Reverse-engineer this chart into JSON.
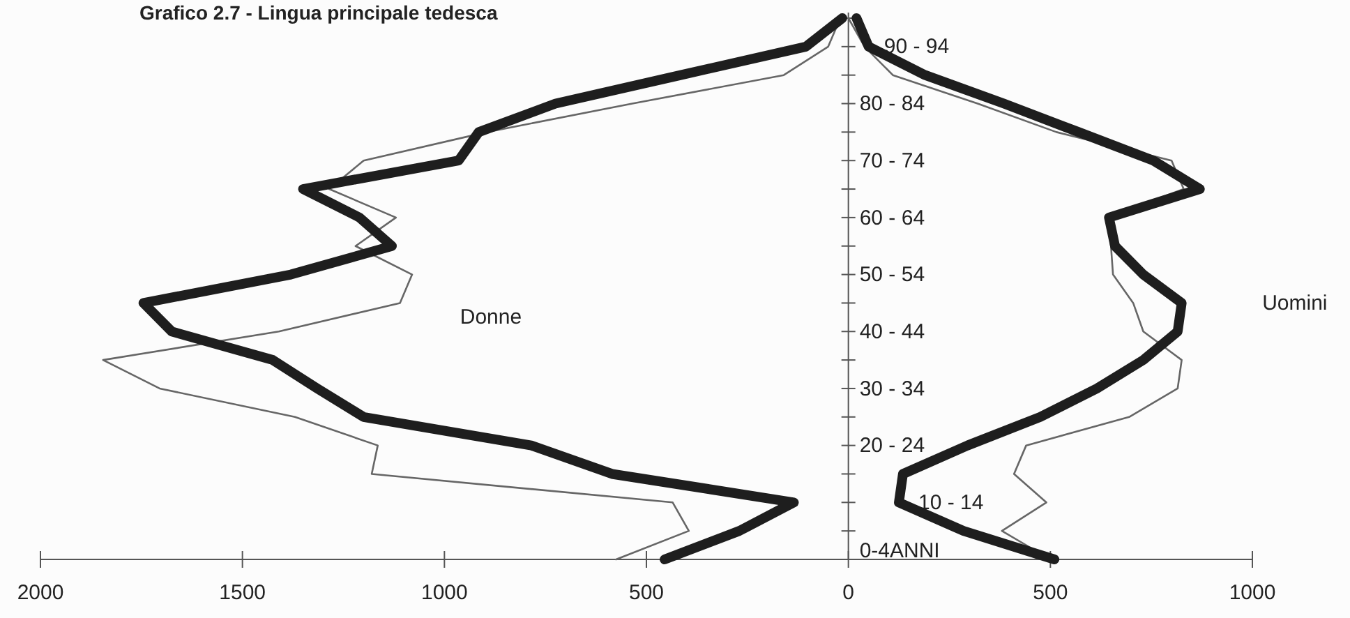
{
  "chart_data": {
    "type": "line",
    "orientation": "horizontal",
    "title": "Grafico 2.7 - Lingua principale tedesca",
    "categories": [
      null,
      "90 - 94",
      null,
      "80 - 84",
      null,
      "70 - 74",
      null,
      "60 - 64",
      null,
      "50 - 54",
      null,
      "40 - 44",
      null,
      "30 - 34",
      null,
      "20 - 24",
      null,
      "10 - 14",
      null,
      "0-4ANNI"
    ],
    "series": [
      {
        "color": "#666666",
        "values": [
          -20,
          -50,
          -160,
          -535,
          -895,
          -1200,
          -1285,
          -1120,
          -1220,
          -1080,
          -1110,
          -1410,
          -1845,
          -1705,
          -1370,
          -1165,
          -1180,
          -435,
          -395,
          -575
        ]
      },
      {
        "color": "#1e1e1e",
        "values": [
          -15,
          -105,
          -415,
          -725,
          -915,
          -965,
          -1350,
          -1210,
          -1130,
          -1380,
          -1745,
          -1675,
          -1425,
          -1315,
          -1200,
          -785,
          -585,
          -135,
          -270,
          -455
        ]
      },
      {
        "color": "#666666",
        "values": [
          0,
          40,
          110,
          320,
          515,
          800,
          830,
          640,
          650,
          655,
          705,
          730,
          825,
          815,
          695,
          440,
          410,
          490,
          380,
          500
        ]
      },
      {
        "color": "#1e1e1e",
        "values": [
          20,
          50,
          190,
          385,
          570,
          755,
          870,
          645,
          660,
          730,
          825,
          815,
          730,
          615,
          475,
          295,
          135,
          125,
          285,
          510
        ]
      }
    ],
    "xlim": [
      -2000,
      1000
    ],
    "xticks": [
      {
        "value": -2000,
        "label": "2000"
      },
      {
        "value": -1500,
        "label": "1500"
      },
      {
        "value": -1000,
        "label": "1000"
      },
      {
        "value": -500,
        "label": "500"
      },
      0,
      500,
      1000
    ],
    "annotations": [
      {
        "text": "Donne"
      },
      {
        "text": "Uomini"
      }
    ],
    "grid": false,
    "marker": "none",
    "line_style": "solid"
  }
}
